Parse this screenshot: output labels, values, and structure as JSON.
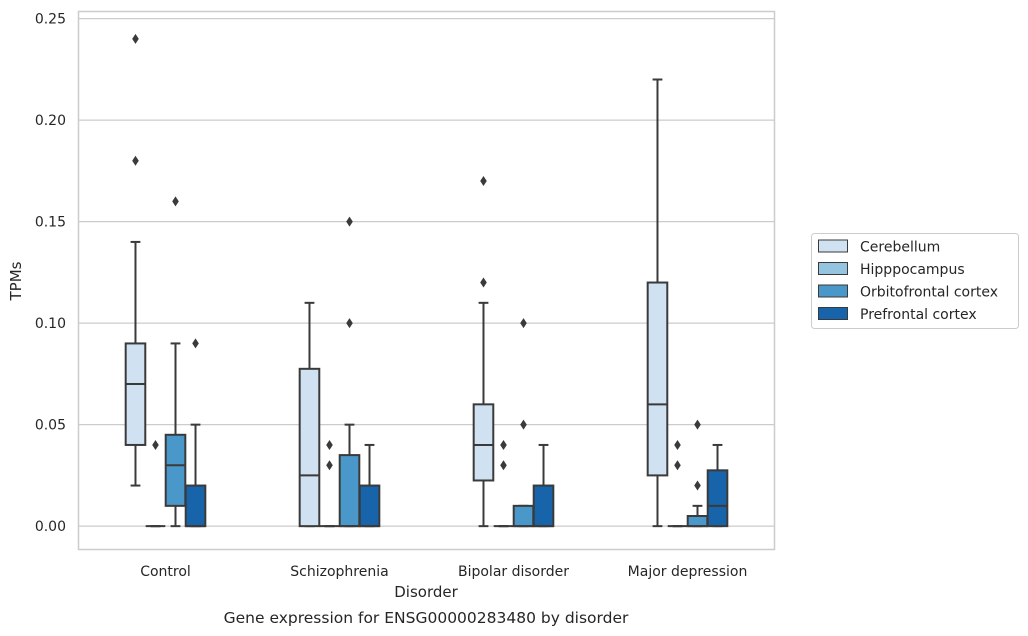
{
  "chart_data": {
    "type": "box",
    "title": "",
    "caption": "Gene expression for ENSG00000283480 by disorder",
    "xlabel": "Disorder",
    "ylabel": "TPMs",
    "ylim": [
      -0.0115,
      0.2535
    ],
    "yticks": [
      "0.00",
      "0.05",
      "0.10",
      "0.15",
      "0.20",
      "0.25"
    ],
    "ytick_values": [
      0,
      0.05,
      0.1,
      0.15,
      0.2,
      0.25
    ],
    "grid": true,
    "legend_position": "right",
    "categories": [
      "Control",
      "Schizophrenia",
      "Bipolar disorder",
      "Major depression"
    ],
    "series": [
      {
        "name": "Cerebellum",
        "color": "#d0e1f2",
        "boxes": [
          {
            "whisker_low": 0.02,
            "q1": 0.04,
            "median": 0.07,
            "q3": 0.09,
            "whisker_high": 0.14,
            "outliers": [
              0.18,
              0.24
            ]
          },
          {
            "whisker_low": 0.0,
            "q1": 0.0,
            "median": 0.025,
            "q3": 0.0775,
            "whisker_high": 0.11,
            "outliers": []
          },
          {
            "whisker_low": 0.0,
            "q1": 0.0225,
            "median": 0.04,
            "q3": 0.06,
            "whisker_high": 0.11,
            "outliers": [
              0.12,
              0.17
            ]
          },
          {
            "whisker_low": 0.0,
            "q1": 0.025,
            "median": 0.06,
            "q3": 0.12,
            "whisker_high": 0.22,
            "outliers": []
          }
        ]
      },
      {
        "name": "Hipppocampus",
        "color": "#94c4df",
        "boxes": [
          {
            "whisker_low": 0.0,
            "q1": 0.0,
            "median": 0.0,
            "q3": 0.0,
            "whisker_high": 0.0,
            "outliers": [
              0.04
            ]
          },
          {
            "whisker_low": 0.0,
            "q1": 0.0,
            "median": 0.0,
            "q3": 0.0,
            "whisker_high": 0.0,
            "outliers": [
              0.03,
              0.04
            ]
          },
          {
            "whisker_low": 0.0,
            "q1": 0.0,
            "median": 0.0,
            "q3": 0.0,
            "whisker_high": 0.0,
            "outliers": [
              0.03,
              0.04
            ]
          },
          {
            "whisker_low": 0.0,
            "q1": 0.0,
            "median": 0.0,
            "q3": 0.0,
            "whisker_high": 0.0,
            "outliers": [
              0.03,
              0.04
            ]
          }
        ]
      },
      {
        "name": "Orbitofrontal cortex",
        "color": "#4a98c9",
        "boxes": [
          {
            "whisker_low": 0.0,
            "q1": 0.01,
            "median": 0.03,
            "q3": 0.045,
            "whisker_high": 0.09,
            "outliers": [
              0.16
            ]
          },
          {
            "whisker_low": 0.0,
            "q1": 0.0,
            "median": 0.0,
            "q3": 0.035,
            "whisker_high": 0.05,
            "outliers": [
              0.1,
              0.15
            ]
          },
          {
            "whisker_low": 0.0,
            "q1": 0.0,
            "median": 0.0,
            "q3": 0.01,
            "whisker_high": 0.01,
            "outliers": [
              0.05,
              0.1
            ]
          },
          {
            "whisker_low": 0.0,
            "q1": 0.0,
            "median": 0.0,
            "q3": 0.005,
            "whisker_high": 0.01,
            "outliers": [
              0.02,
              0.05
            ]
          }
        ]
      },
      {
        "name": "Prefrontal cortex",
        "color": "#1764ab",
        "boxes": [
          {
            "whisker_low": 0.0,
            "q1": 0.0,
            "median": 0.0,
            "q3": 0.02,
            "whisker_high": 0.05,
            "outliers": [
              0.09
            ]
          },
          {
            "whisker_low": 0.0,
            "q1": 0.0,
            "median": 0.0,
            "q3": 0.02,
            "whisker_high": 0.04,
            "outliers": []
          },
          {
            "whisker_low": 0.0,
            "q1": 0.0,
            "median": 0.0,
            "q3": 0.02,
            "whisker_high": 0.04,
            "outliers": []
          },
          {
            "whisker_low": 0.0,
            "q1": 0.0,
            "median": 0.01,
            "q3": 0.0275,
            "whisker_high": 0.04,
            "outliers": []
          }
        ]
      }
    ]
  }
}
